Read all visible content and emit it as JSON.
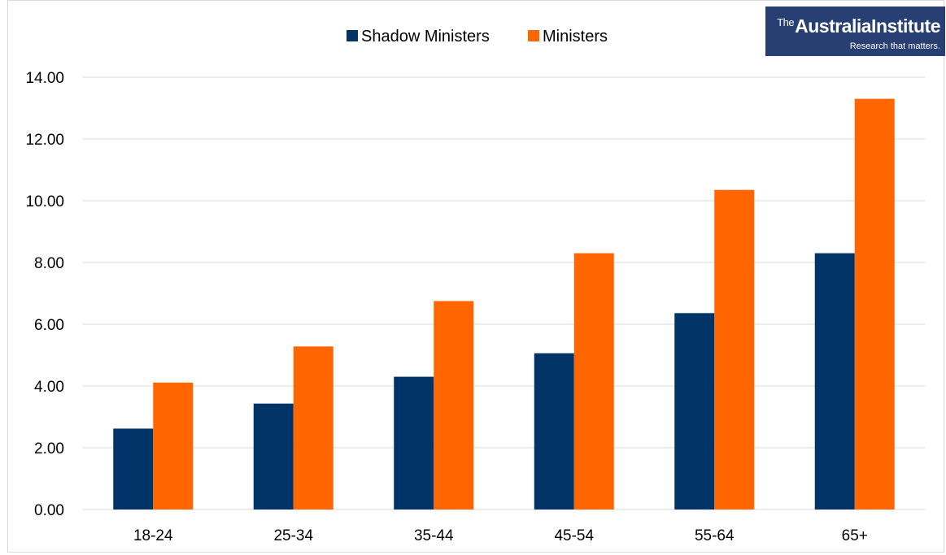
{
  "colors": {
    "shadow_ministers": "#003366",
    "ministers": "#FF6600",
    "gridline": "#d9d9d9",
    "logo_background": "#273f73"
  },
  "logo": {
    "prefix": "The",
    "name": "AustraliaInstitute",
    "tagline": "Research that matters."
  },
  "chart_data": {
    "type": "bar",
    "title": "",
    "xlabel": "",
    "ylabel": "",
    "categories": [
      "18-24",
      "25-34",
      "35-44",
      "45-54",
      "55-64",
      "65+"
    ],
    "series": [
      {
        "name": "Shadow Ministers",
        "values": [
          2.62,
          3.43,
          4.3,
          5.06,
          6.36,
          8.3
        ]
      },
      {
        "name": "Ministers",
        "values": [
          4.11,
          5.28,
          6.75,
          8.3,
          10.35,
          13.3
        ]
      }
    ],
    "ylim": [
      0,
      14
    ],
    "yticks": [
      0,
      2,
      4,
      6,
      8,
      10,
      12,
      14
    ],
    "ytick_labels": [
      "0.00",
      "2.00",
      "4.00",
      "6.00",
      "8.00",
      "10.00",
      "12.00",
      "14.00"
    ],
    "grid": true,
    "legend_position": "top-center"
  }
}
